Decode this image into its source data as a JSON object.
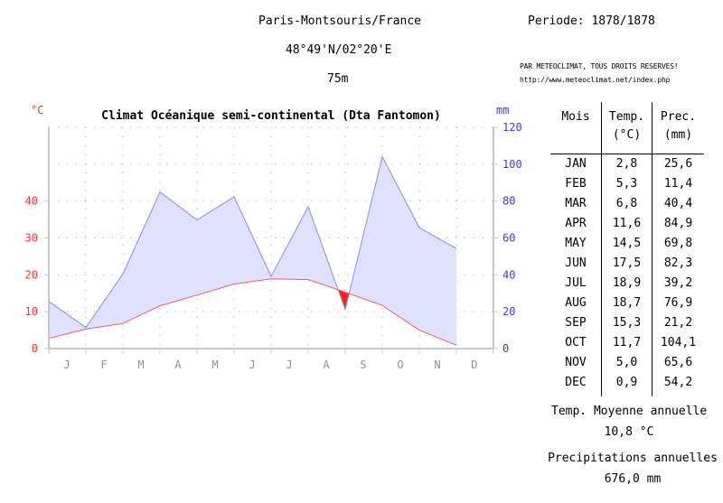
{
  "header": {
    "station": "Paris-Montsouris/France",
    "period": "Periode: 1878/1878",
    "coordinates": "48°49'N/02°20'E",
    "altitude": "75m",
    "credit_line1": "PAR METEOCLIMAT, TOUS DROITS RESERVES!",
    "credit_line2": "http://www.meteoclimat.net/index.php"
  },
  "chart_data": {
    "type": "area",
    "title": "Climat Océanique semi-continental (Dta Fantomon)",
    "left_axis_unit": "°C",
    "right_axis_unit": "mm",
    "categories": [
      "J",
      "F",
      "M",
      "A",
      "M",
      "J",
      "J",
      "A",
      "S",
      "O",
      "N",
      "D"
    ],
    "temp_ticks": [
      "0",
      "10",
      "20",
      "30",
      "40"
    ],
    "precip_ticks": [
      "0",
      "20",
      "40",
      "60",
      "80",
      "100",
      "120"
    ],
    "temp_range": [
      0,
      60
    ],
    "precip_range": [
      0,
      120
    ],
    "series": [
      {
        "name": "Temp. (°C)",
        "axis": "left",
        "values": [
          2.8,
          5.3,
          6.8,
          11.6,
          14.5,
          17.5,
          18.9,
          18.7,
          15.3,
          11.7,
          5.0,
          0.9
        ]
      },
      {
        "name": "Prec. (mm)",
        "axis": "right",
        "values": [
          25.6,
          11.4,
          40.4,
          84.9,
          69.8,
          82.3,
          39.2,
          76.9,
          21.2,
          104.1,
          65.6,
          54.2
        ]
      }
    ],
    "grid": true,
    "colors": {
      "temp": "#ff5a5a",
      "precip_line": "#8a8aea",
      "precip_fill": "#e0e0ff",
      "dry_fill": "#ff2020",
      "axis_red": "#ff3030",
      "axis_blue": "#3c3cd2",
      "month_label": "#909090",
      "grid": "#a0a0a0"
    }
  },
  "table": {
    "headers": [
      {
        "line1": "Mois",
        "line2": ""
      },
      {
        "line1": "Temp.",
        "line2": "(°C)"
      },
      {
        "line1": "Prec.",
        "line2": "(mm)"
      }
    ],
    "rows": [
      {
        "month": "JAN",
        "temp": "2,8",
        "prec": "25,6"
      },
      {
        "month": "FEB",
        "temp": "5,3",
        "prec": "11,4"
      },
      {
        "month": "MAR",
        "temp": "6,8",
        "prec": "40,4"
      },
      {
        "month": "APR",
        "temp": "11,6",
        "prec": "84,9"
      },
      {
        "month": "MAY",
        "temp": "14,5",
        "prec": "69,8"
      },
      {
        "month": "JUN",
        "temp": "17,5",
        "prec": "82,3"
      },
      {
        "month": "JUL",
        "temp": "18,9",
        "prec": "39,2"
      },
      {
        "month": "AUG",
        "temp": "18,7",
        "prec": "76,9"
      },
      {
        "month": "SEP",
        "temp": "15,3",
        "prec": "21,2"
      },
      {
        "month": "OCT",
        "temp": "11,7",
        "prec": "104,1"
      },
      {
        "month": "NOV",
        "temp": "5,0",
        "prec": "65,6"
      },
      {
        "month": "DEC",
        "temp": "0,9",
        "prec": "54,2"
      }
    ]
  },
  "summary": {
    "temp_label": "Temp. Moyenne annuelle",
    "temp_value": "10,8 °C",
    "precip_label": "Precipitations annuelles",
    "precip_value": "676,0 mm"
  }
}
